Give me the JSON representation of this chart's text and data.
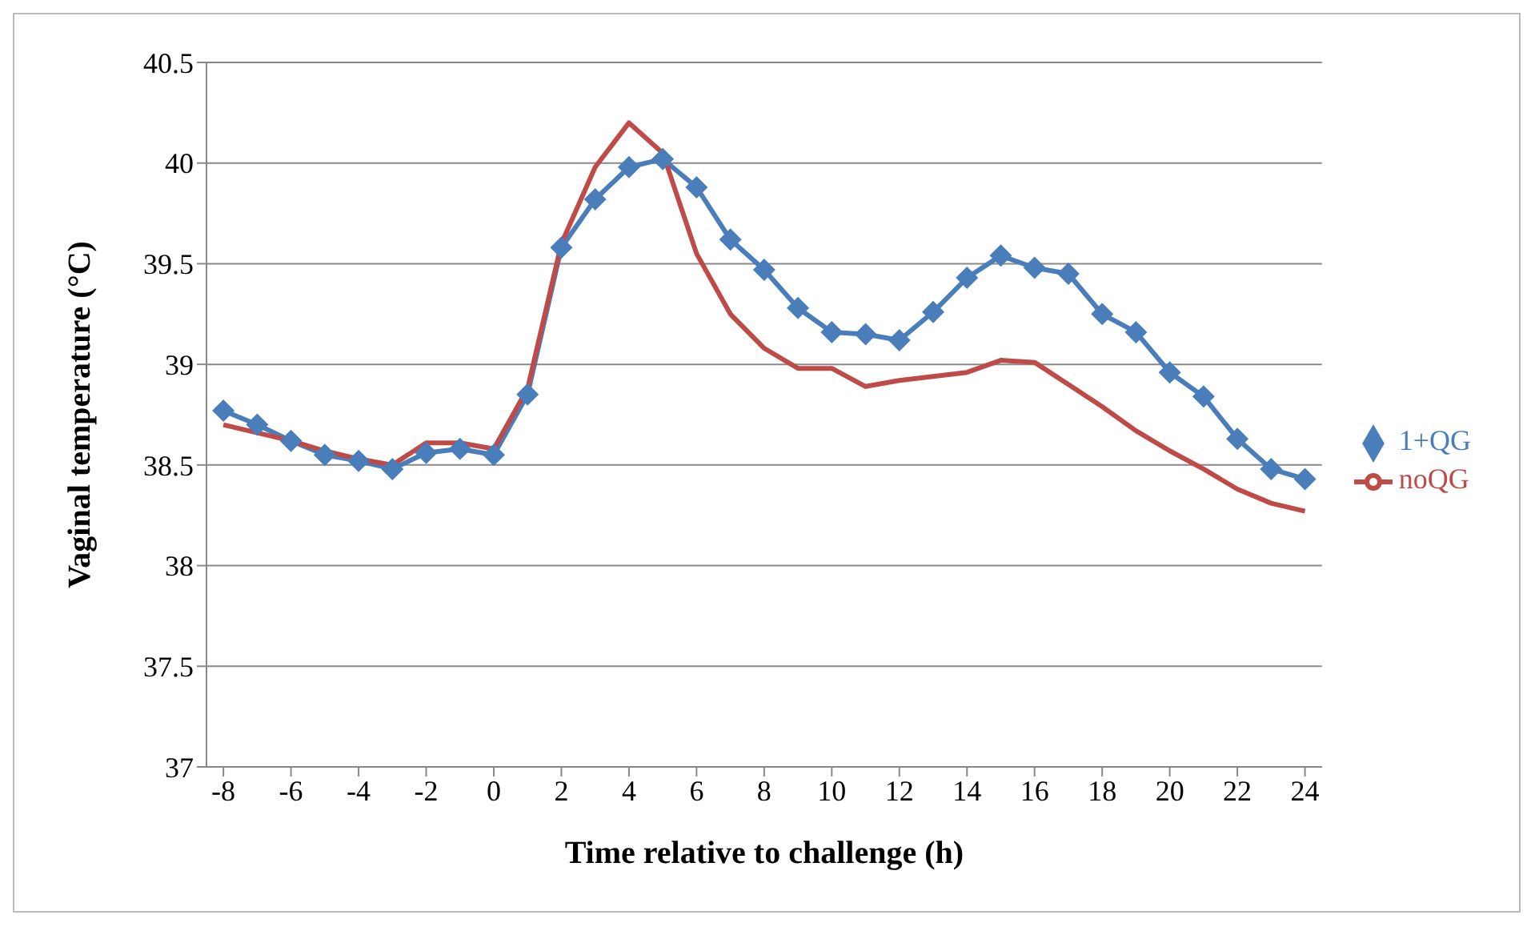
{
  "chart_data": {
    "type": "line",
    "xlabel": "Time relative to challenge (h)",
    "ylabel": "Vaginal temperature (°C)",
    "x": [
      -8,
      -7,
      -6,
      -5,
      -4,
      -3,
      -2,
      -1,
      0,
      1,
      2,
      3,
      4,
      5,
      6,
      7,
      8,
      9,
      10,
      11,
      12,
      13,
      14,
      15,
      16,
      17,
      18,
      19,
      20,
      21,
      22,
      23,
      24
    ],
    "xlim": [
      -8.5,
      24.5
    ],
    "xticks": [
      -8,
      -6,
      -4,
      -2,
      0,
      2,
      4,
      6,
      8,
      10,
      12,
      14,
      16,
      18,
      20,
      22,
      24
    ],
    "ylim": [
      37,
      40.5
    ],
    "yticks": [
      37,
      37.5,
      38,
      38.5,
      39,
      39.5,
      40,
      40.5
    ],
    "grid": "y",
    "legend": "right",
    "series": [
      {
        "name": "1+QG",
        "color": "#4a7ebb",
        "marker": "diamond",
        "values": [
          38.77,
          38.7,
          38.62,
          38.55,
          38.52,
          38.48,
          38.56,
          38.58,
          38.55,
          38.85,
          39.58,
          39.82,
          39.98,
          40.02,
          39.88,
          39.62,
          39.47,
          39.28,
          39.16,
          39.15,
          39.12,
          39.26,
          39.43,
          39.54,
          39.48,
          39.45,
          39.25,
          39.16,
          38.96,
          38.84,
          38.63,
          38.48,
          38.43
        ]
      },
      {
        "name": "noQG",
        "color": "#be4b48",
        "marker": "none",
        "values": [
          38.7,
          38.66,
          38.62,
          38.57,
          38.53,
          38.5,
          38.61,
          38.61,
          38.58,
          38.88,
          39.6,
          39.98,
          40.2,
          40.05,
          39.55,
          39.25,
          39.08,
          38.98,
          38.98,
          38.89,
          38.92,
          38.94,
          38.96,
          39.02,
          39.01,
          38.9,
          38.79,
          38.67,
          38.57,
          38.48,
          38.38,
          38.31,
          38.27
        ]
      }
    ]
  }
}
